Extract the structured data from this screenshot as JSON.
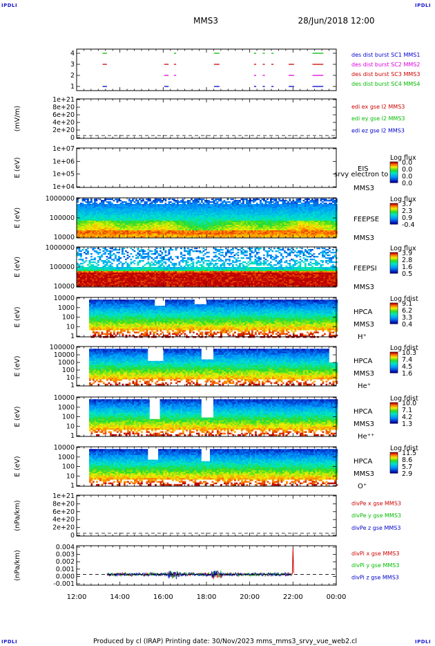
{
  "header": {
    "spacecraft": "MMS3",
    "datetime": "28/Jun/2018 12:00",
    "corner_label": "IPDLI"
  },
  "footer": {
    "text": "Produced by cl (IRAP)   Printing date: 30/Nov/2023   mms_mms3_srvy_vue_web2.cl"
  },
  "colors": {
    "blue": "#0000cc",
    "red": "#cc0000",
    "green": "#00bb00",
    "magenta": "#dd00dd"
  },
  "chart_data": [
    {
      "type": "scatter",
      "id": "burst",
      "ylabel": "",
      "yticks": [
        "1",
        "2",
        "3",
        "4"
      ],
      "ylim": [
        0.5,
        4.5
      ],
      "legend": [
        {
          "label": "des dist burst SC1 MMS1",
          "color": "#0000cc"
        },
        {
          "label": "des dist burst SC2 MMS2",
          "color": "#dd00dd"
        },
        {
          "label": "des dist burst SC3 MMS3",
          "color": "#cc0000"
        },
        {
          "label": "des dist burst SC4 MMS4",
          "color": "#00bb00"
        }
      ],
      "intervals_hours": [
        [
          13.2,
          13.4
        ],
        [
          16.05,
          16.25
        ],
        [
          16.5,
          16.6
        ],
        [
          18.35,
          18.6
        ],
        [
          20.2,
          20.3
        ],
        [
          20.6,
          20.7
        ],
        [
          21.0,
          21.1
        ],
        [
          21.8,
          22.05
        ],
        [
          22.9,
          23.4
        ]
      ]
    },
    {
      "type": "line",
      "id": "edi",
      "ylabel": "(mV/m)",
      "yticks": [
        "0",
        "2e+20",
        "4e+20",
        "6e+20",
        "8e+20",
        "1e+21"
      ],
      "legend": [
        {
          "label": "edi ex gse l2 MMS3",
          "color": "#cc0000"
        },
        {
          "label": "edi ey gse l2 MMS3",
          "color": "#00bb00"
        },
        {
          "label": "edi ez gse l2 MMS3",
          "color": "#0000cc"
        }
      ]
    },
    {
      "type": "heatmap",
      "id": "eis",
      "ylabel": "E (eV)",
      "yticks": [
        "1e+04",
        "1e+05",
        "1e+06",
        "1e+07"
      ],
      "labels": [
        "EIS",
        "srvy electron to",
        "MMS3"
      ],
      "cbar_title": "Log flux",
      "cbar_ticks": [
        "0.0",
        "0.0",
        "0.0",
        "0.0"
      ]
    },
    {
      "type": "heatmap",
      "id": "feepse",
      "ylabel": "E (eV)",
      "yticks": [
        "10000",
        "100000",
        "1000000"
      ],
      "labels": [
        "FEEPSE",
        "MMS3"
      ],
      "cbar_title": "Log flux",
      "cbar_ticks": [
        "3.7",
        "2.3",
        "0.9",
        "-0.4"
      ]
    },
    {
      "type": "heatmap",
      "id": "feepsi",
      "ylabel": "E (eV)",
      "yticks": [
        "10000",
        "100000",
        "1000000"
      ],
      "labels": [
        "FEEPSI",
        "MMS3"
      ],
      "cbar_title": "Log flux",
      "cbar_ticks": [
        "3.9",
        "2.8",
        "1.6",
        "0.5"
      ]
    },
    {
      "type": "heatmap",
      "id": "hpca_h",
      "ylabel": "E (eV)",
      "yticks": [
        "1",
        "10",
        "100",
        "1000",
        "10000"
      ],
      "labels": [
        "HPCA",
        "MMS3",
        "H⁺"
      ],
      "cbar_title": "Log fdist",
      "cbar_ticks": [
        "9.1",
        "6.2",
        "3.3",
        "0.4"
      ]
    },
    {
      "type": "heatmap",
      "id": "hpca_he",
      "ylabel": "E (eV)",
      "yticks": [
        "1",
        "10",
        "100",
        "1000",
        "10000",
        "100000"
      ],
      "labels": [
        "HPCA",
        "MMS3",
        "He⁺"
      ],
      "cbar_title": "Log fdist",
      "cbar_ticks": [
        "10.3",
        "7.4",
        "4.5",
        "1.6"
      ]
    },
    {
      "type": "heatmap",
      "id": "hpca_hepp",
      "ylabel": "E (eV)",
      "yticks": [
        "1",
        "10",
        "100",
        "1000",
        "10000"
      ],
      "labels": [
        "HPCA",
        "MMS3",
        "He⁺⁺"
      ],
      "cbar_title": "Log fdist",
      "cbar_ticks": [
        "10.0",
        "7.1",
        "4.2",
        "1.3"
      ]
    },
    {
      "type": "heatmap",
      "id": "hpca_o",
      "ylabel": "E (eV)",
      "yticks": [
        "1",
        "10",
        "100",
        "1000",
        "10000"
      ],
      "labels": [
        "HPCA",
        "MMS3",
        "O⁺"
      ],
      "cbar_title": "Log fdist",
      "cbar_ticks": [
        "11.5",
        "8.6",
        "5.7",
        "2.9"
      ]
    },
    {
      "type": "line",
      "id": "divpe",
      "ylabel": "(nPa/km)",
      "yticks": [
        "0",
        "2e+20",
        "4e+20",
        "6e+20",
        "8e+20",
        "1e+21"
      ],
      "legend": [
        {
          "label": "divPe x gse MMS3",
          "color": "#cc0000"
        },
        {
          "label": "divPe y gse MMS3",
          "color": "#00bb00"
        },
        {
          "label": "divPe z gse MMS3",
          "color": "#0000cc"
        }
      ]
    },
    {
      "type": "line",
      "id": "divpi",
      "ylabel": "(nPa/km)",
      "yticks": [
        "-0.001",
        "0.000",
        "0.001",
        "0.002",
        "0.003",
        "0.004"
      ],
      "ylim": [
        -0.0015,
        0.004
      ],
      "legend": [
        {
          "label": "divPi x gse MMS3",
          "color": "#cc0000"
        },
        {
          "label": "divPi y gse MMS3",
          "color": "#00bb00"
        },
        {
          "label": "divPi z gse MMS3",
          "color": "#0000cc"
        }
      ]
    }
  ],
  "xaxis": {
    "ticks": [
      "12:00",
      "14:00",
      "16:00",
      "18:00",
      "20:00",
      "22:00",
      "00:00"
    ],
    "range_hours": [
      12,
      24
    ]
  }
}
